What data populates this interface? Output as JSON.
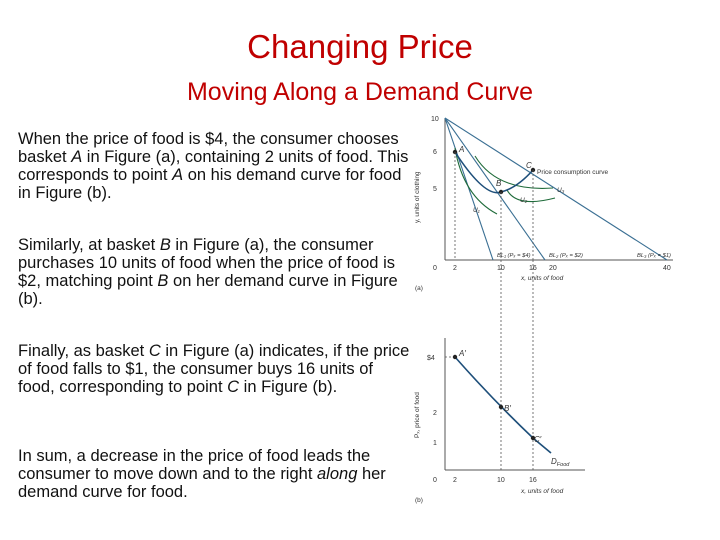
{
  "slide": {
    "title": "Changing Price",
    "subtitle": "Moving Along a Demand Curve",
    "paragraphs": [
      [
        {
          "t": "When the price of food is $4, the consumer chooses basket "
        },
        {
          "t": "A",
          "i": true
        },
        {
          "t": " in Figure (a), containing 2 units of food. This corresponds to point "
        },
        {
          "t": "A",
          "i": true
        },
        {
          "t": " on his demand curve for food in Figure (b)."
        }
      ],
      [
        {
          "t": "Similarly, at basket "
        },
        {
          "t": "B",
          "i": true
        },
        {
          "t": " in Figure (a), the consumer purchases 10 units of food when the price of food is $2, matching point "
        },
        {
          "t": "B",
          "i": true
        },
        {
          "t": " on her demand curve in Figure (b)."
        }
      ],
      [
        {
          "t": "Finally, as basket "
        },
        {
          "t": "C",
          "i": true
        },
        {
          "t": " in Figure (a) indicates, if the price of food falls to $1, the consumer buys 16 units of food, corresponding to point "
        },
        {
          "t": "C",
          "i": true
        },
        {
          "t": " in Figure (b)."
        }
      ],
      [
        {
          "t": "In sum, a decrease in the price of food leads the consumer to move down and to the right "
        },
        {
          "t": "along",
          "i": true
        },
        {
          "t": " her demand curve for food."
        }
      ]
    ]
  },
  "figure_a": {
    "y_axis_label": "y, units of clothing",
    "y_ticks": [
      "10",
      "6",
      "5"
    ],
    "x_axis_label": "x, units of food",
    "x_ticks": [
      "0",
      "2",
      "10",
      "16",
      "20",
      "40"
    ],
    "panel_label": "(a)",
    "pcc_label": "Price consumption curve",
    "points": {
      "a": "A",
      "b": "B",
      "c": "C"
    },
    "indiff_labels": [
      "U₁",
      "U₂",
      "U₃"
    ],
    "budget_labels": [
      "BL₁ (Pₓ = $4)",
      "BL₂ (Pₓ = $2)",
      "BL₃ (Pₓ = $1)"
    ],
    "colors": {
      "budget": "#3a6f93",
      "indifference": "#1f6b3a",
      "pcc": "#1e4f7a",
      "demand": "#1e4f7a",
      "dashed": "#555555"
    }
  },
  "figure_b": {
    "y_axis_label": "Pₓ, price of food",
    "y_ticks": [
      "$4",
      "2",
      "1"
    ],
    "x_axis_label": "x, units of food",
    "x_ticks": [
      "0",
      "2",
      "10",
      "16"
    ],
    "panel_label": "(b)",
    "points": {
      "a": "A′",
      "b": "B′",
      "c": "C′"
    },
    "demand_label": "D",
    "demand_sub": "Food"
  }
}
